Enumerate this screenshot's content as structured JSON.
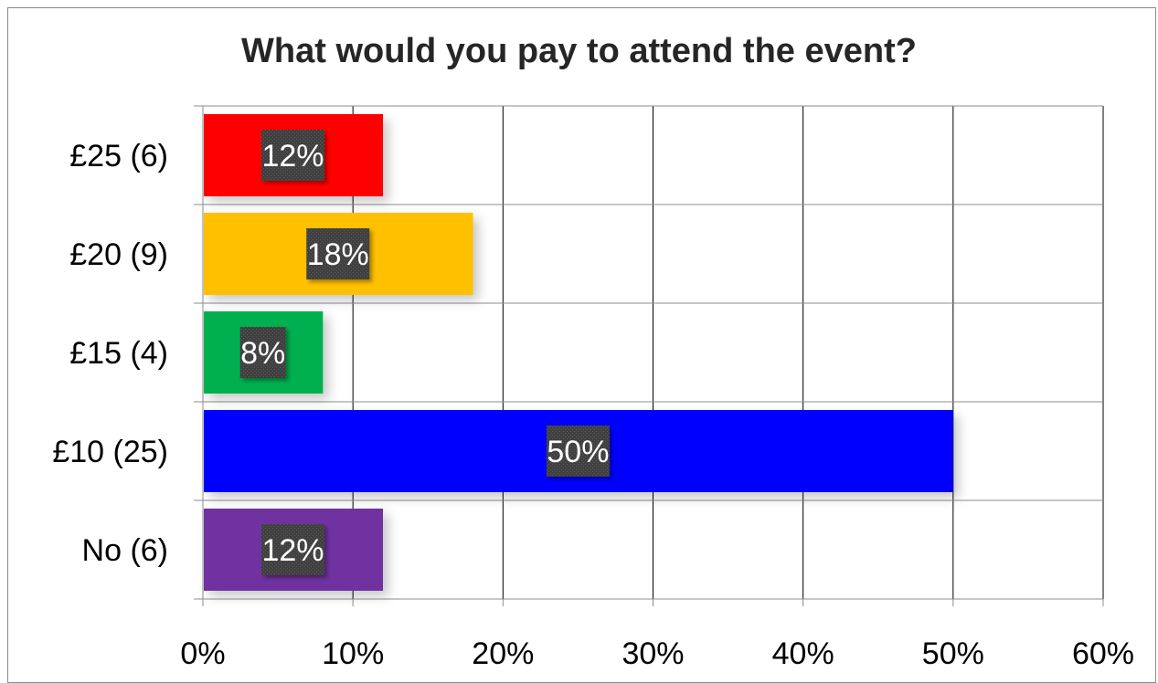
{
  "chart_data": {
    "type": "bar",
    "orientation": "horizontal",
    "title": "What would you pay to attend the event?",
    "xlabel": "",
    "ylabel": "",
    "categories": [
      "£25 (6)",
      "£20 (9)",
      "£15 (4)",
      "£10 (25)",
      "No (6)"
    ],
    "values": [
      12,
      18,
      8,
      50,
      12
    ],
    "data_labels": [
      "12%",
      "18%",
      "8%",
      "50%",
      "12%"
    ],
    "bar_colors": [
      "#ff0000",
      "#ffc000",
      "#00b050",
      "#0000ff",
      "#7030a0"
    ],
    "xlim": [
      0,
      60
    ],
    "x_ticks": [
      "0%",
      "10%",
      "20%",
      "30%",
      "40%",
      "50%",
      "60%"
    ],
    "grid": true,
    "legend": "none"
  }
}
